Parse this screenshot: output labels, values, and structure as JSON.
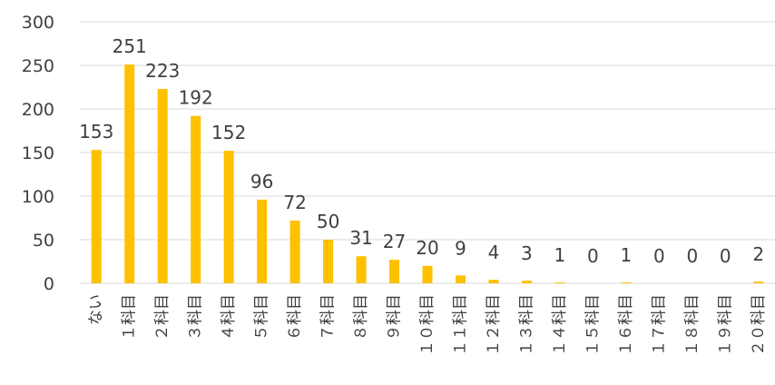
{
  "chart_data": {
    "type": "bar",
    "categories": [
      "ない",
      "1科目",
      "2科目",
      "3科目",
      "4科目",
      "5科目",
      "6科目",
      "7科目",
      "8科目",
      "9科目",
      "10科目",
      "11科目",
      "12科目",
      "13科目",
      "14科目",
      "15科目",
      "16科目",
      "17科目",
      "18科目",
      "19科目",
      "20科目"
    ],
    "category_display": [
      "ない",
      "１科目",
      "２科目",
      "３科目",
      "４科目",
      "５科目",
      "６科目",
      "７科目",
      "８科目",
      "９科目",
      "１０科目",
      "１１科目",
      "１２科目",
      "１３科目",
      "１４科目",
      "１５科目",
      "１６科目",
      "１７科目",
      "１８科目",
      "１９科目",
      "２０科目"
    ],
    "values": [
      153,
      251,
      223,
      192,
      152,
      96,
      72,
      50,
      31,
      27,
      20,
      9,
      4,
      3,
      1,
      0,
      1,
      0,
      0,
      0,
      2
    ],
    "title": "",
    "xlabel": "",
    "ylabel": "",
    "ylim": [
      0,
      300
    ],
    "yticks": [
      0,
      50,
      100,
      150,
      200,
      250,
      300
    ],
    "grid": true,
    "legend": "none",
    "bar_color": "#FFC000",
    "grid_color": "#D9D9D9",
    "text_color": "#404040"
  }
}
